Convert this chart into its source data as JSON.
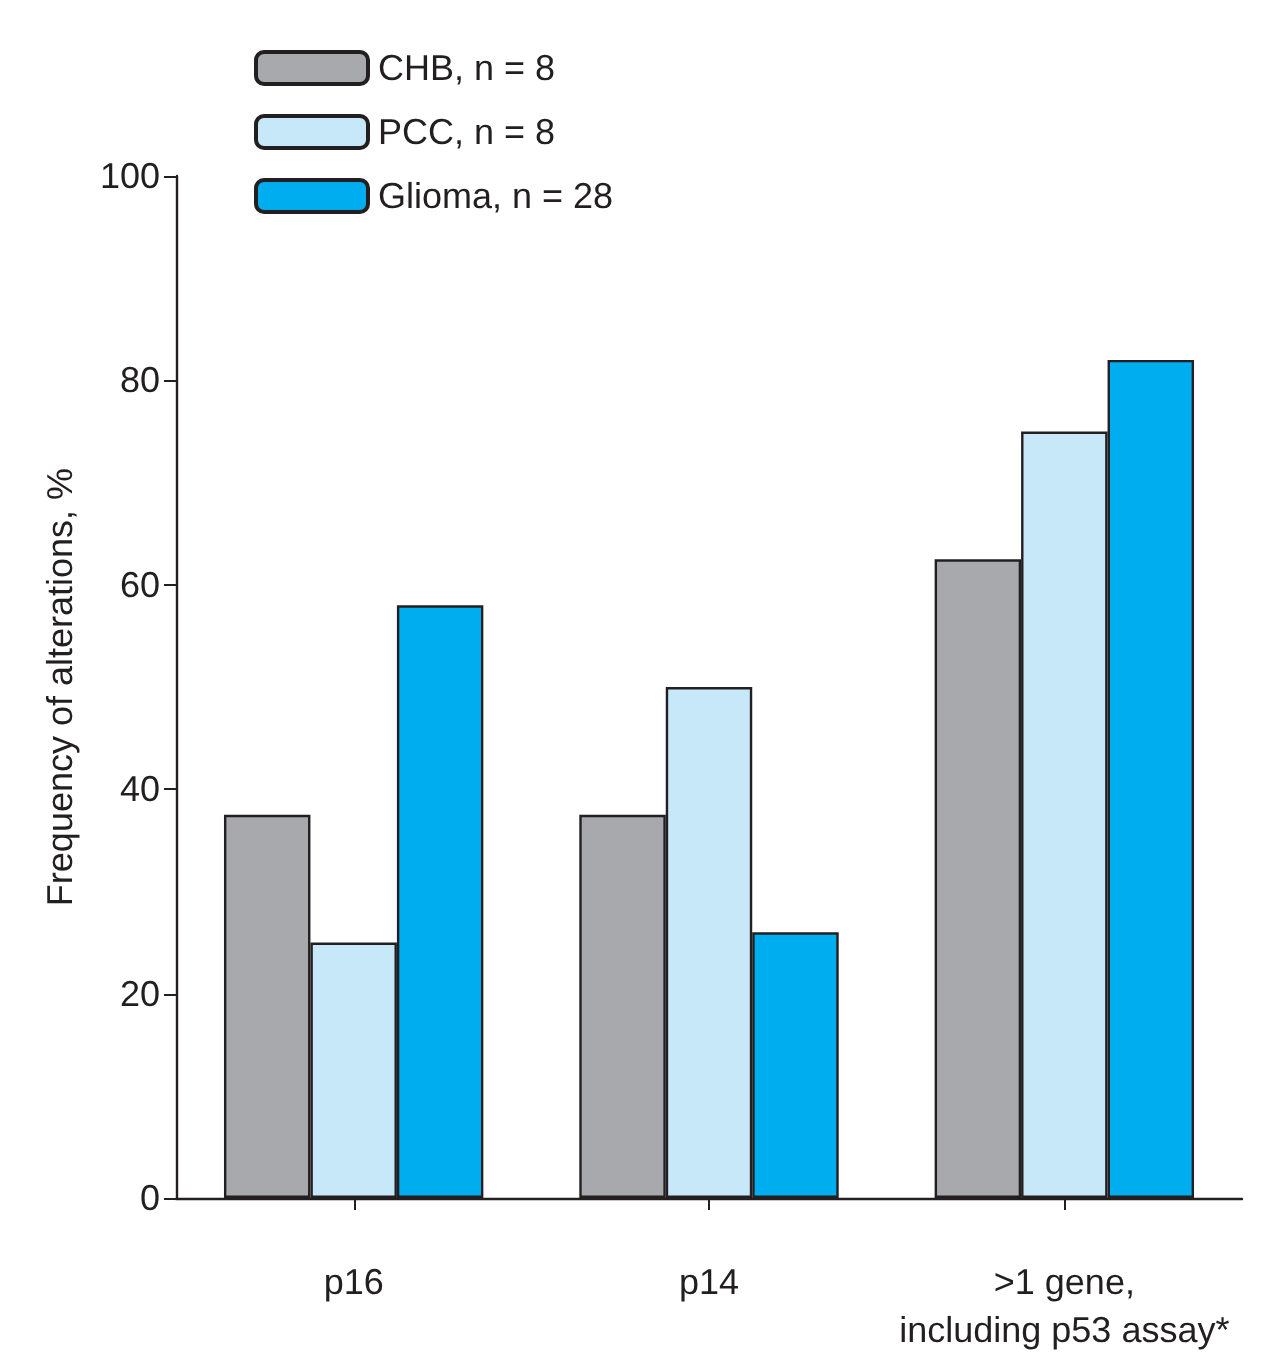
{
  "chart_data": {
    "type": "bar",
    "ylabel": "Frequency of alterations, %",
    "categories": [
      "p16",
      "p14",
      ">1 gene,\nincluding p53 assay*"
    ],
    "series": [
      {
        "name": "CHB, n = 8",
        "color": "#a7a9ac",
        "values": [
          37.5,
          37.5,
          62.5
        ]
      },
      {
        "name": "PCC, n = 8",
        "color": "#c6e8f8",
        "values": [
          25,
          50,
          75
        ]
      },
      {
        "name": "Glioma, n = 28",
        "color": "#00aeef",
        "values": [
          58,
          26,
          82
        ]
      }
    ],
    "ylim": [
      0,
      100
    ],
    "yticks": [
      0,
      20,
      40,
      60,
      80,
      100
    ],
    "grid": false,
    "legend": "top left"
  }
}
